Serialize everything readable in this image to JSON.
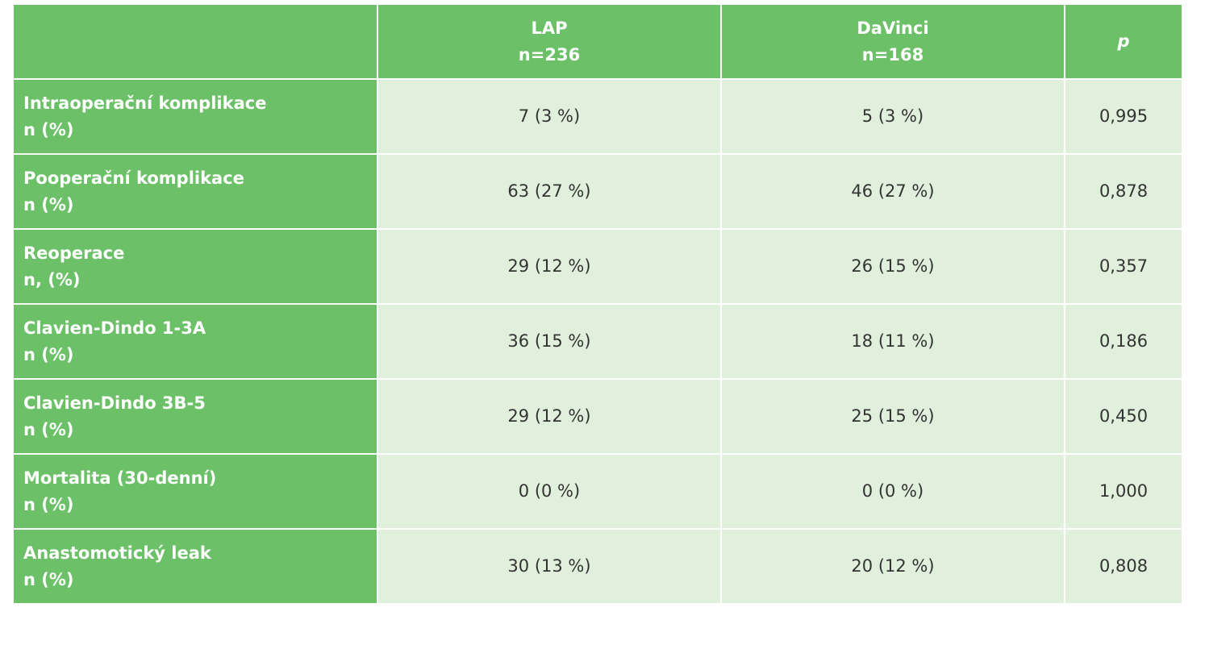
{
  "table": {
    "columns": [
      {
        "name": "LAP",
        "n": "n=236"
      },
      {
        "name": "DaVinci",
        "n": "n=168"
      },
      {
        "name": "p"
      }
    ],
    "rows": [
      {
        "label": "Intraoperační komplikace",
        "sublabel": "n (%)",
        "cells": [
          "7 (3 %)",
          "5 (3 %)",
          "0,995"
        ]
      },
      {
        "label": "Pooperační komplikace",
        "sublabel": "n (%)",
        "cells": [
          "63 (27 %)",
          "46 (27 %)",
          "0,878"
        ]
      },
      {
        "label": "Reoperace",
        "sublabel": "n, (%)",
        "cells": [
          "29 (12 %)",
          "26 (15 %)",
          "0,357"
        ]
      },
      {
        "label": "Clavien-Dindo 1-3A",
        "sublabel": "n (%)",
        "cells": [
          "36 (15 %)",
          "18 (11 %)",
          "0,186"
        ]
      },
      {
        "label": "Clavien-Dindo 3B-5",
        "sublabel": "n (%)",
        "cells": [
          "29 (12 %)",
          "25 (15 %)",
          "0,450"
        ]
      },
      {
        "label": "Mortalita (30-denní)",
        "sublabel": "n (%)",
        "cells": [
          "0 (0 %)",
          "0 (0 %)",
          "1,000"
        ]
      },
      {
        "label": "Anastomotický leak",
        "sublabel": "n (%)",
        "cells": [
          "30 (13 %)",
          "20 (12 %)",
          "0,808"
        ]
      }
    ]
  }
}
